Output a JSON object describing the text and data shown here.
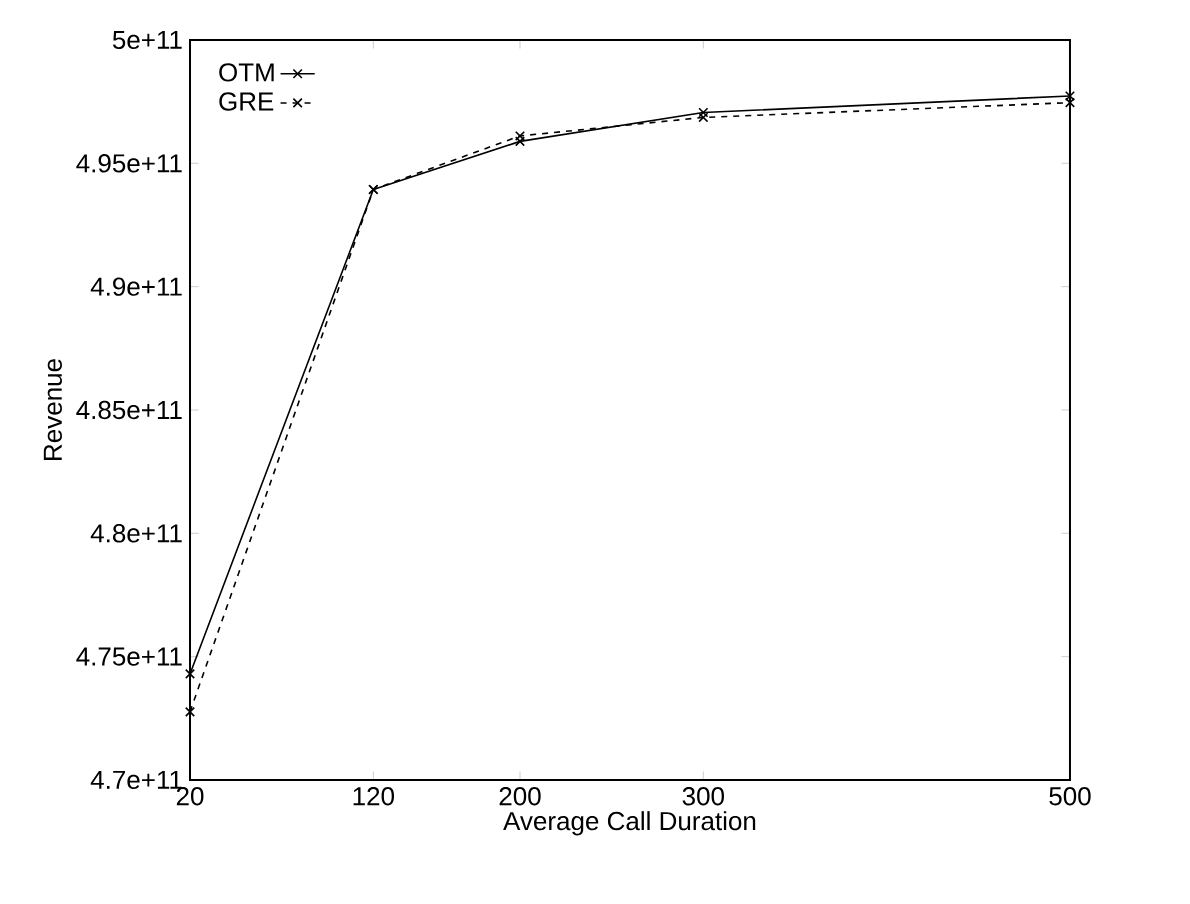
{
  "chart_data": {
    "type": "line",
    "xlabel": "Average Call Duration",
    "ylabel": "Revenue",
    "x": [
      20,
      120,
      200,
      300,
      500
    ],
    "series": [
      {
        "name": "OTM",
        "color": "#000000",
        "marker": "cross",
        "line_style": "solid",
        "values": [
          474300000000,
          493940000000,
          495890000000,
          497060000000,
          497730000000
        ]
      },
      {
        "name": "GRE",
        "color": "#000000",
        "marker": "cross",
        "line_style": "dashed",
        "values": [
          472760000000,
          493940000000,
          496110000000,
          496860000000,
          497460000000
        ]
      }
    ],
    "xlim": [
      20,
      500
    ],
    "xticks": [
      20,
      120,
      200,
      300,
      500
    ],
    "ylim": [
      470000000000,
      500000000000
    ],
    "yticks": [
      {
        "value": 470000000000,
        "label": "4.7e+11"
      },
      {
        "value": 475000000000,
        "label": "4.75e+11"
      },
      {
        "value": 480000000000,
        "label": "4.8e+11"
      },
      {
        "value": 485000000000,
        "label": "4.85e+11"
      },
      {
        "value": 490000000000,
        "label": "4.9e+11"
      },
      {
        "value": 495000000000,
        "label": "4.95e+11"
      },
      {
        "value": 500000000000,
        "label": "5e+11"
      }
    ],
    "legend": "top left"
  }
}
